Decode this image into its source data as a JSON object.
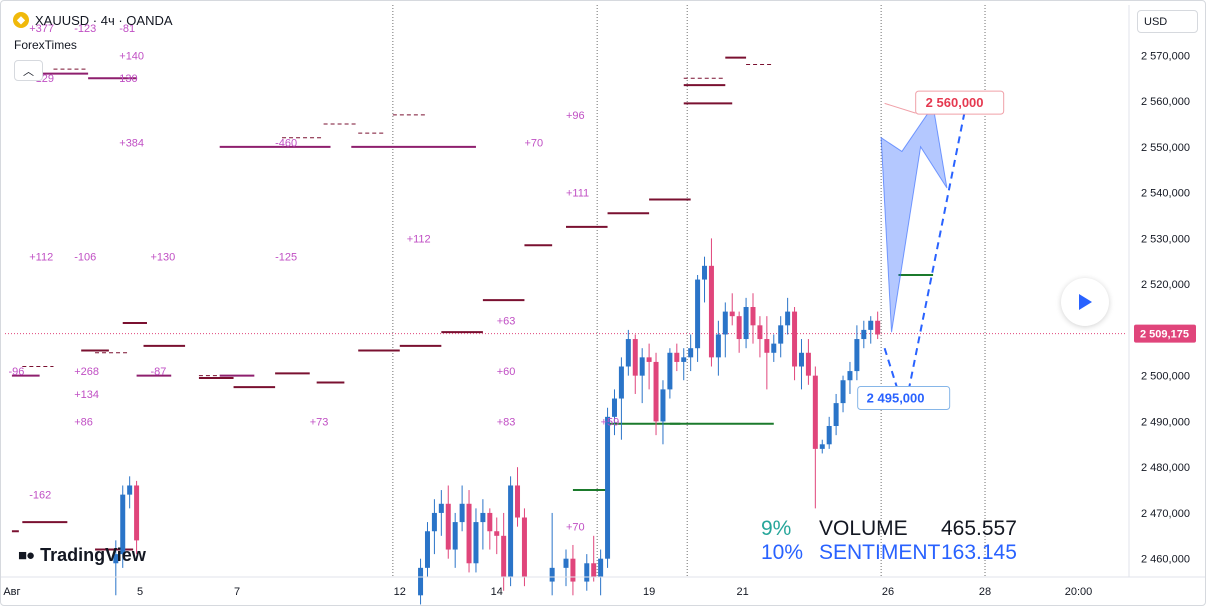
{
  "header": {
    "symbol": "XAUUSD",
    "interval": "4ч",
    "exchange": "OANDA",
    "title_line": "XAUUSD · 4ч · OANDA",
    "publisher": "ForexTimes"
  },
  "toolbar": {
    "collapse_icon": "chevron-up-icon",
    "currency_label": "USD"
  },
  "branding": {
    "logo_text": "TradingView"
  },
  "stats": {
    "rows": [
      {
        "pct": "9%",
        "label": "VOLUME",
        "value": "465.557"
      },
      {
        "pct": "10%",
        "label": "SENTIMENT",
        "value": "163.145"
      }
    ]
  },
  "colors": {
    "up": "#2a74c8",
    "down": "#e0457b",
    "annotation": "#c04fc4",
    "level_line": "#7a1030",
    "green_level": "#1b7a2c",
    "crosshair": "#e0457b",
    "target": "#e53950",
    "support": "#2962ff"
  },
  "chart_data": {
    "type": "candlestick",
    "title": "XAUUSD · 4ч · OANDA",
    "y_axis_ticks": [
      "2 460,000",
      "2 470,000",
      "2 480,000",
      "2 490,000",
      "2 500,000",
      "2 510,000",
      "2 520,000",
      "2 530,000",
      "2 540,000",
      "2 550,000",
      "2 560,000",
      "2 570,000"
    ],
    "ylim": [
      2456,
      2581
    ],
    "x_axis_ticks": [
      "Авг",
      "5",
      "7",
      "12",
      "14",
      "19",
      "21",
      "26",
      "28",
      "20:00"
    ],
    "x_tick_index": [
      0,
      18.5,
      32.5,
      56,
      70,
      92,
      105.5,
      126.5,
      140.5,
      154
    ],
    "xlim": [
      -1,
      161
    ],
    "current_price_label": "2 509,175",
    "current_price": 2509.175,
    "target_label": "2 560,000",
    "target_price": 2560,
    "support_label": "2 495,000",
    "support_price": 2495,
    "period_separators": [
      55,
      84.5,
      97.5,
      125.5,
      140.5
    ],
    "candles": [
      {
        "i": 15,
        "o": 2459,
        "h": 2464,
        "l": 2452,
        "c": 2461
      },
      {
        "i": 16,
        "o": 2461,
        "h": 2476,
        "l": 2458,
        "c": 2474
      },
      {
        "i": 17,
        "o": 2474,
        "h": 2478,
        "l": 2471,
        "c": 2476
      },
      {
        "i": 18,
        "o": 2476,
        "h": 2477,
        "l": 2461,
        "c": 2464
      },
      {
        "i": 59,
        "o": 2452,
        "h": 2460,
        "l": 2450,
        "c": 2458
      },
      {
        "i": 60,
        "o": 2458,
        "h": 2468,
        "l": 2456,
        "c": 2466
      },
      {
        "i": 61,
        "o": 2466,
        "h": 2473,
        "l": 2461,
        "c": 2470
      },
      {
        "i": 62,
        "o": 2470,
        "h": 2475,
        "l": 2465,
        "c": 2472
      },
      {
        "i": 63,
        "o": 2472,
        "h": 2476,
        "l": 2460,
        "c": 2462
      },
      {
        "i": 64,
        "o": 2462,
        "h": 2470,
        "l": 2458,
        "c": 2468
      },
      {
        "i": 65,
        "o": 2468,
        "h": 2476,
        "l": 2466,
        "c": 2472
      },
      {
        "i": 66,
        "o": 2472,
        "h": 2475,
        "l": 2457,
        "c": 2459
      },
      {
        "i": 67,
        "o": 2459,
        "h": 2471,
        "l": 2457,
        "c": 2468
      },
      {
        "i": 68,
        "o": 2468,
        "h": 2473,
        "l": 2462,
        "c": 2470
      },
      {
        "i": 69,
        "o": 2470,
        "h": 2471,
        "l": 2462,
        "c": 2466
      },
      {
        "i": 70,
        "o": 2466,
        "h": 2469,
        "l": 2461,
        "c": 2465
      },
      {
        "i": 71,
        "o": 2465,
        "h": 2470,
        "l": 2453,
        "c": 2456
      },
      {
        "i": 72,
        "o": 2456,
        "h": 2478,
        "l": 2454,
        "c": 2476
      },
      {
        "i": 73,
        "o": 2476,
        "h": 2480,
        "l": 2467,
        "c": 2469
      },
      {
        "i": 74,
        "o": 2469,
        "h": 2471,
        "l": 2454,
        "c": 2456
      },
      {
        "i": 78,
        "o": 2455,
        "h": 2470,
        "l": 2452,
        "c": 2458
      },
      {
        "i": 80,
        "o": 2458,
        "h": 2462,
        "l": 2454,
        "c": 2460
      },
      {
        "i": 81,
        "o": 2460,
        "h": 2463,
        "l": 2452,
        "c": 2455
      },
      {
        "i": 83,
        "o": 2455,
        "h": 2461,
        "l": 2453,
        "c": 2459
      },
      {
        "i": 84,
        "o": 2459,
        "h": 2465,
        "l": 2455,
        "c": 2456
      },
      {
        "i": 85,
        "o": 2456,
        "h": 2462,
        "l": 2452,
        "c": 2460
      },
      {
        "i": 86,
        "o": 2460,
        "h": 2493,
        "l": 2458,
        "c": 2491
      },
      {
        "i": 87,
        "o": 2491,
        "h": 2497,
        "l": 2487,
        "c": 2495
      },
      {
        "i": 88,
        "o": 2495,
        "h": 2504,
        "l": 2486,
        "c": 2502
      },
      {
        "i": 89,
        "o": 2502,
        "h": 2510,
        "l": 2500,
        "c": 2508
      },
      {
        "i": 90,
        "o": 2508,
        "h": 2509,
        "l": 2496,
        "c": 2500
      },
      {
        "i": 91,
        "o": 2500,
        "h": 2506,
        "l": 2494,
        "c": 2504
      },
      {
        "i": 92,
        "o": 2504,
        "h": 2507,
        "l": 2497,
        "c": 2503
      },
      {
        "i": 93,
        "o": 2503,
        "h": 2505,
        "l": 2487,
        "c": 2490
      },
      {
        "i": 94,
        "o": 2490,
        "h": 2499,
        "l": 2485,
        "c": 2497
      },
      {
        "i": 95,
        "o": 2497,
        "h": 2506,
        "l": 2495,
        "c": 2505
      },
      {
        "i": 96,
        "o": 2505,
        "h": 2507,
        "l": 2501,
        "c": 2503
      },
      {
        "i": 97,
        "o": 2503,
        "h": 2506,
        "l": 2499,
        "c": 2504
      },
      {
        "i": 98,
        "o": 2504,
        "h": 2509,
        "l": 2501,
        "c": 2506
      },
      {
        "i": 99,
        "o": 2506,
        "h": 2522,
        "l": 2503,
        "c": 2521
      },
      {
        "i": 100,
        "o": 2521,
        "h": 2526,
        "l": 2516,
        "c": 2524
      },
      {
        "i": 101,
        "o": 2524,
        "h": 2530,
        "l": 2502,
        "c": 2504
      },
      {
        "i": 102,
        "o": 2504,
        "h": 2512,
        "l": 2500,
        "c": 2509
      },
      {
        "i": 103,
        "o": 2509,
        "h": 2516,
        "l": 2504,
        "c": 2514
      },
      {
        "i": 104,
        "o": 2514,
        "h": 2518,
        "l": 2511,
        "c": 2513
      },
      {
        "i": 105,
        "o": 2513,
        "h": 2514,
        "l": 2505,
        "c": 2508
      },
      {
        "i": 106,
        "o": 2508,
        "h": 2517,
        "l": 2506,
        "c": 2515
      },
      {
        "i": 107,
        "o": 2515,
        "h": 2518,
        "l": 2507,
        "c": 2511
      },
      {
        "i": 108,
        "o": 2511,
        "h": 2513,
        "l": 2504,
        "c": 2508
      },
      {
        "i": 109,
        "o": 2508,
        "h": 2513,
        "l": 2497,
        "c": 2505
      },
      {
        "i": 110,
        "o": 2505,
        "h": 2509,
        "l": 2503,
        "c": 2507
      },
      {
        "i": 111,
        "o": 2507,
        "h": 2513,
        "l": 2504,
        "c": 2511
      },
      {
        "i": 112,
        "o": 2511,
        "h": 2517,
        "l": 2509,
        "c": 2514
      },
      {
        "i": 113,
        "o": 2514,
        "h": 2515,
        "l": 2499,
        "c": 2502
      },
      {
        "i": 114,
        "o": 2502,
        "h": 2508,
        "l": 2497,
        "c": 2505
      },
      {
        "i": 115,
        "o": 2505,
        "h": 2508,
        "l": 2498,
        "c": 2500
      },
      {
        "i": 116,
        "o": 2500,
        "h": 2502,
        "l": 2471,
        "c": 2484
      },
      {
        "i": 117,
        "o": 2484,
        "h": 2486,
        "l": 2483,
        "c": 2485
      },
      {
        "i": 118,
        "o": 2485,
        "h": 2491,
        "l": 2484,
        "c": 2489
      },
      {
        "i": 119,
        "o": 2489,
        "h": 2496,
        "l": 2487,
        "c": 2494
      },
      {
        "i": 120,
        "o": 2494,
        "h": 2500,
        "l": 2492,
        "c": 2499
      },
      {
        "i": 121,
        "o": 2499,
        "h": 2503,
        "l": 2496,
        "c": 2501
      },
      {
        "i": 122,
        "o": 2501,
        "h": 2511,
        "l": 2499,
        "c": 2508
      },
      {
        "i": 123,
        "o": 2508,
        "h": 2512,
        "l": 2506,
        "c": 2510
      },
      {
        "i": 124,
        "o": 2510,
        "h": 2513,
        "l": 2507,
        "c": 2512
      },
      {
        "i": 125,
        "o": 2512,
        "h": 2514,
        "l": 2508,
        "c": 2509
      }
    ],
    "level_lines": [
      {
        "x1": 0,
        "x2": 1,
        "y": 2466,
        "style": "solid"
      },
      {
        "x1": 1.5,
        "x2": 8,
        "y": 2468,
        "style": "solid"
      },
      {
        "x1": 12,
        "x2": 17.5,
        "y": 2462,
        "style": "solid"
      },
      {
        "x1": 10,
        "x2": 14,
        "y": 2505.5,
        "style": "solid"
      },
      {
        "x1": 19,
        "x2": 25,
        "y": 2506.5,
        "style": "solid"
      },
      {
        "x1": 16,
        "x2": 19.5,
        "y": 2511.5,
        "style": "solid"
      },
      {
        "x1": 27,
        "x2": 32,
        "y": 2499.5,
        "style": "solid"
      },
      {
        "x1": 32,
        "x2": 38,
        "y": 2497.5,
        "style": "solid"
      },
      {
        "x1": 38,
        "x2": 43,
        "y": 2500.5,
        "style": "solid"
      },
      {
        "x1": 44,
        "x2": 48,
        "y": 2498.5,
        "style": "solid"
      },
      {
        "x1": 50,
        "x2": 56,
        "y": 2505.5,
        "style": "solid"
      },
      {
        "x1": 56,
        "x2": 62,
        "y": 2506.5,
        "style": "solid"
      },
      {
        "x1": 62,
        "x2": 68,
        "y": 2509.5,
        "style": "solid"
      },
      {
        "x1": 68,
        "x2": 74,
        "y": 2516.5,
        "style": "solid"
      },
      {
        "x1": 74,
        "x2": 78,
        "y": 2528.5,
        "style": "solid"
      },
      {
        "x1": 80,
        "x2": 86,
        "y": 2532.5,
        "style": "solid"
      },
      {
        "x1": 86,
        "x2": 92,
        "y": 2535.5,
        "style": "solid"
      },
      {
        "x1": 92,
        "x2": 98,
        "y": 2538.5,
        "style": "solid"
      },
      {
        "x1": 97,
        "x2": 103,
        "y": 2563.5,
        "style": "solid"
      },
      {
        "x1": 103,
        "x2": 106,
        "y": 2569.5,
        "style": "solid"
      },
      {
        "x1": 97,
        "x2": 104,
        "y": 2559.5,
        "style": "solid"
      }
    ],
    "annotations": [
      {
        "text": "+377",
        "x": 2.5,
        "y": 2576
      },
      {
        "text": "-123",
        "x": 9,
        "y": 2576
      },
      {
        "text": "-81",
        "x": 15.5,
        "y": 2576
      },
      {
        "text": "+140",
        "x": 15.5,
        "y": 2570
      },
      {
        "text": "+129",
        "x": 2.5,
        "y": 2565
      },
      {
        "text": "130",
        "x": 15.5,
        "y": 2565
      },
      {
        "text": "+384",
        "x": 15.5,
        "y": 2551
      },
      {
        "text": "-460",
        "x": 38,
        "y": 2551
      },
      {
        "text": "+96",
        "x": 80,
        "y": 2557
      },
      {
        "text": "+70",
        "x": 74,
        "y": 2551
      },
      {
        "text": "+111",
        "x": 80,
        "y": 2540
      },
      {
        "text": "+112",
        "x": 57,
        "y": 2530
      },
      {
        "text": "+112",
        "x": 2.5,
        "y": 2526
      },
      {
        "text": "-106",
        "x": 9,
        "y": 2526
      },
      {
        "text": "+130",
        "x": 20,
        "y": 2526
      },
      {
        "text": "-125",
        "x": 38,
        "y": 2526
      },
      {
        "text": "+63",
        "x": 70,
        "y": 2512
      },
      {
        "text": "-96",
        "x": -0.5,
        "y": 2501
      },
      {
        "text": "+268",
        "x": 9,
        "y": 2501
      },
      {
        "text": "-87",
        "x": 20,
        "y": 2501
      },
      {
        "text": "+60",
        "x": 70,
        "y": 2501
      },
      {
        "text": "+134",
        "x": 9,
        "y": 2496
      },
      {
        "text": "+86",
        "x": 9,
        "y": 2490
      },
      {
        "text": "+73",
        "x": 43,
        "y": 2490
      },
      {
        "text": "+83",
        "x": 70,
        "y": 2490
      },
      {
        "text": "+59",
        "x": 85,
        "y": 2490
      },
      {
        "text": "-162",
        "x": 2.5,
        "y": 2474
      },
      {
        "text": "+70",
        "x": 80,
        "y": 2467
      }
    ]
  }
}
